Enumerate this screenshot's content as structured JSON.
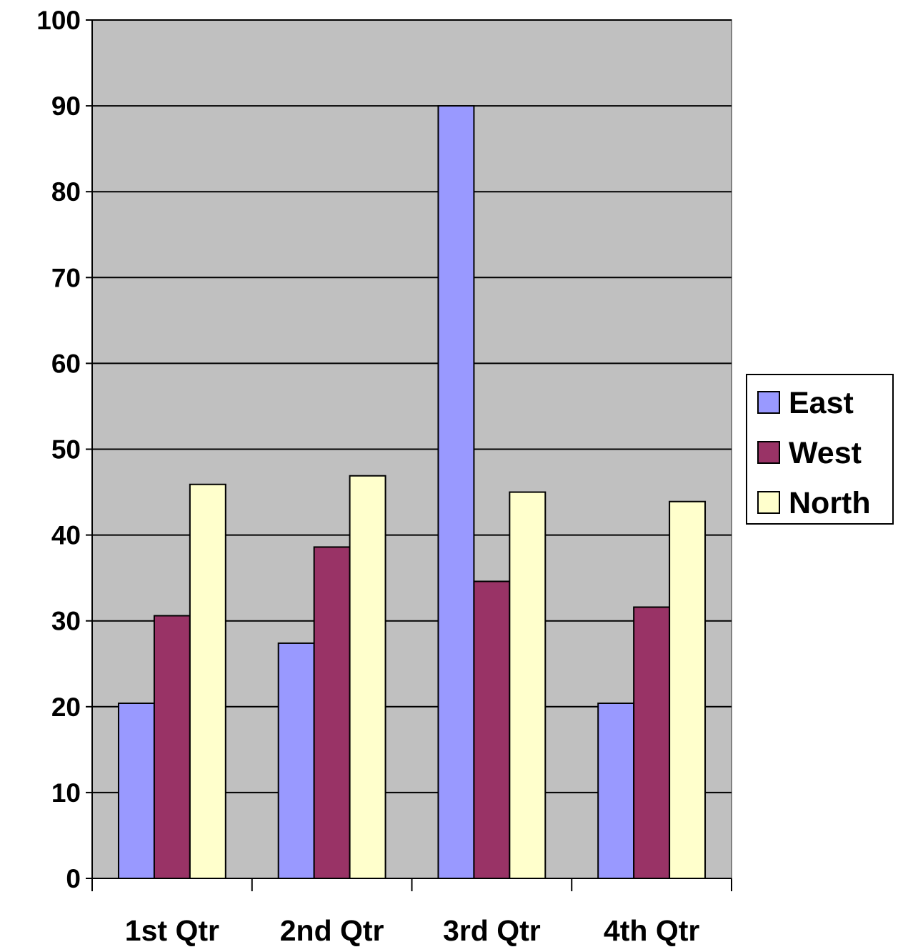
{
  "chart_data": {
    "type": "bar",
    "title": "",
    "xlabel": "",
    "ylabel": "",
    "categories": [
      "1st Qtr",
      "2nd Qtr",
      "3rd Qtr",
      "4th Qtr"
    ],
    "series": [
      {
        "name": "East",
        "values": [
          20.4,
          27.4,
          90,
          20.4
        ],
        "color": "#9999ff"
      },
      {
        "name": "West",
        "values": [
          30.6,
          38.6,
          34.6,
          31.6
        ],
        "color": "#993366"
      },
      {
        "name": "North",
        "values": [
          45.9,
          46.9,
          45,
          43.9
        ],
        "color": "#ffffcc"
      }
    ],
    "ylim": [
      0,
      100
    ],
    "yticks": [
      0,
      10,
      20,
      30,
      40,
      50,
      60,
      70,
      80,
      90,
      100
    ],
    "grid": true,
    "plot_background": "#c0c0c0",
    "legend_position": "right"
  }
}
